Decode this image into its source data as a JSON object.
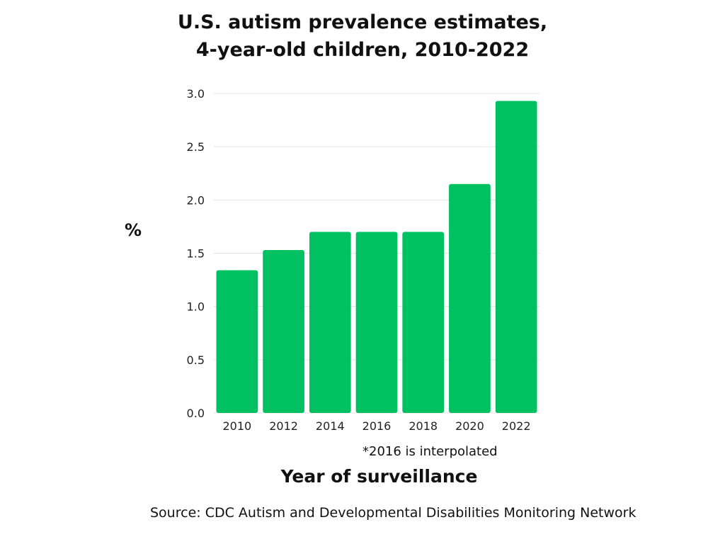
{
  "chart_data": {
    "type": "bar",
    "title": [
      "U.S. autism prevalence estimates,",
      "4-year-old children, 2010-2022"
    ],
    "ylabel": "%",
    "xlabel": "Year of surveillance",
    "categories": [
      "2010",
      "2012",
      "2014",
      "2016",
      "2018",
      "2020",
      "2022"
    ],
    "values": [
      1.34,
      1.53,
      1.7,
      1.7,
      1.7,
      2.15,
      2.93
    ],
    "ylim": [
      0,
      3.0
    ],
    "yticks": [
      "0.0",
      "0.5",
      "1.0",
      "1.5",
      "2.0",
      "2.5",
      "3.0"
    ],
    "grid": true,
    "bar_color": "#00c162",
    "note": "*2016 is interpolated",
    "source": "Source: CDC Autism and Developmental Disabilities Monitoring Network"
  }
}
